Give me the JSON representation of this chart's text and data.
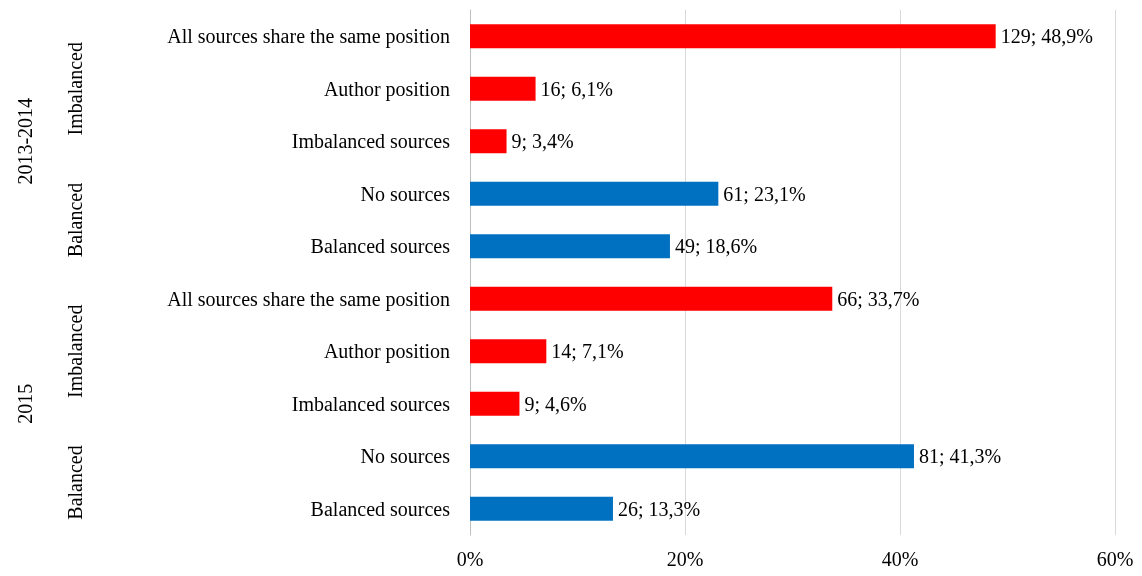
{
  "chart_data": {
    "type": "bar",
    "orientation": "horizontal",
    "categories": [
      "All sources share the same position",
      "Author position",
      "Imbalanced sources",
      "No sources",
      "Balanced sources",
      "All sources share the same position",
      "Author position",
      "Imbalanced sources",
      "No sources",
      "Balanced sources"
    ],
    "values": [
      48.9,
      6.1,
      3.4,
      23.1,
      18.6,
      33.7,
      7.1,
      4.6,
      41.3,
      13.3
    ],
    "colors": [
      "#ff0000",
      "#ff0000",
      "#ff0000",
      "#0070c0",
      "#0070c0",
      "#ff0000",
      "#ff0000",
      "#ff0000",
      "#0070c0",
      "#0070c0"
    ],
    "value_labels": [
      "129; 48,9%",
      "16; 6,1%",
      "9; 3,4%",
      "61; 23,1%",
      "49; 18,6%",
      "66; 33,7%",
      "14; 7,1%",
      "9; 4,6%",
      "81; 41,3%",
      "26; 13,3%"
    ],
    "xlim": [
      0,
      60
    ],
    "xticks": [
      {
        "value": 0,
        "label": "0%"
      },
      {
        "value": 20,
        "label": "20%"
      },
      {
        "value": 40,
        "label": "40%"
      },
      {
        "value": 60,
        "label": "60%"
      }
    ],
    "grid": "x",
    "annotations": [
      "2013-2014",
      "Imbalanced",
      "Balanced",
      "2015",
      "Imbalanced",
      "Balanced"
    ]
  }
}
